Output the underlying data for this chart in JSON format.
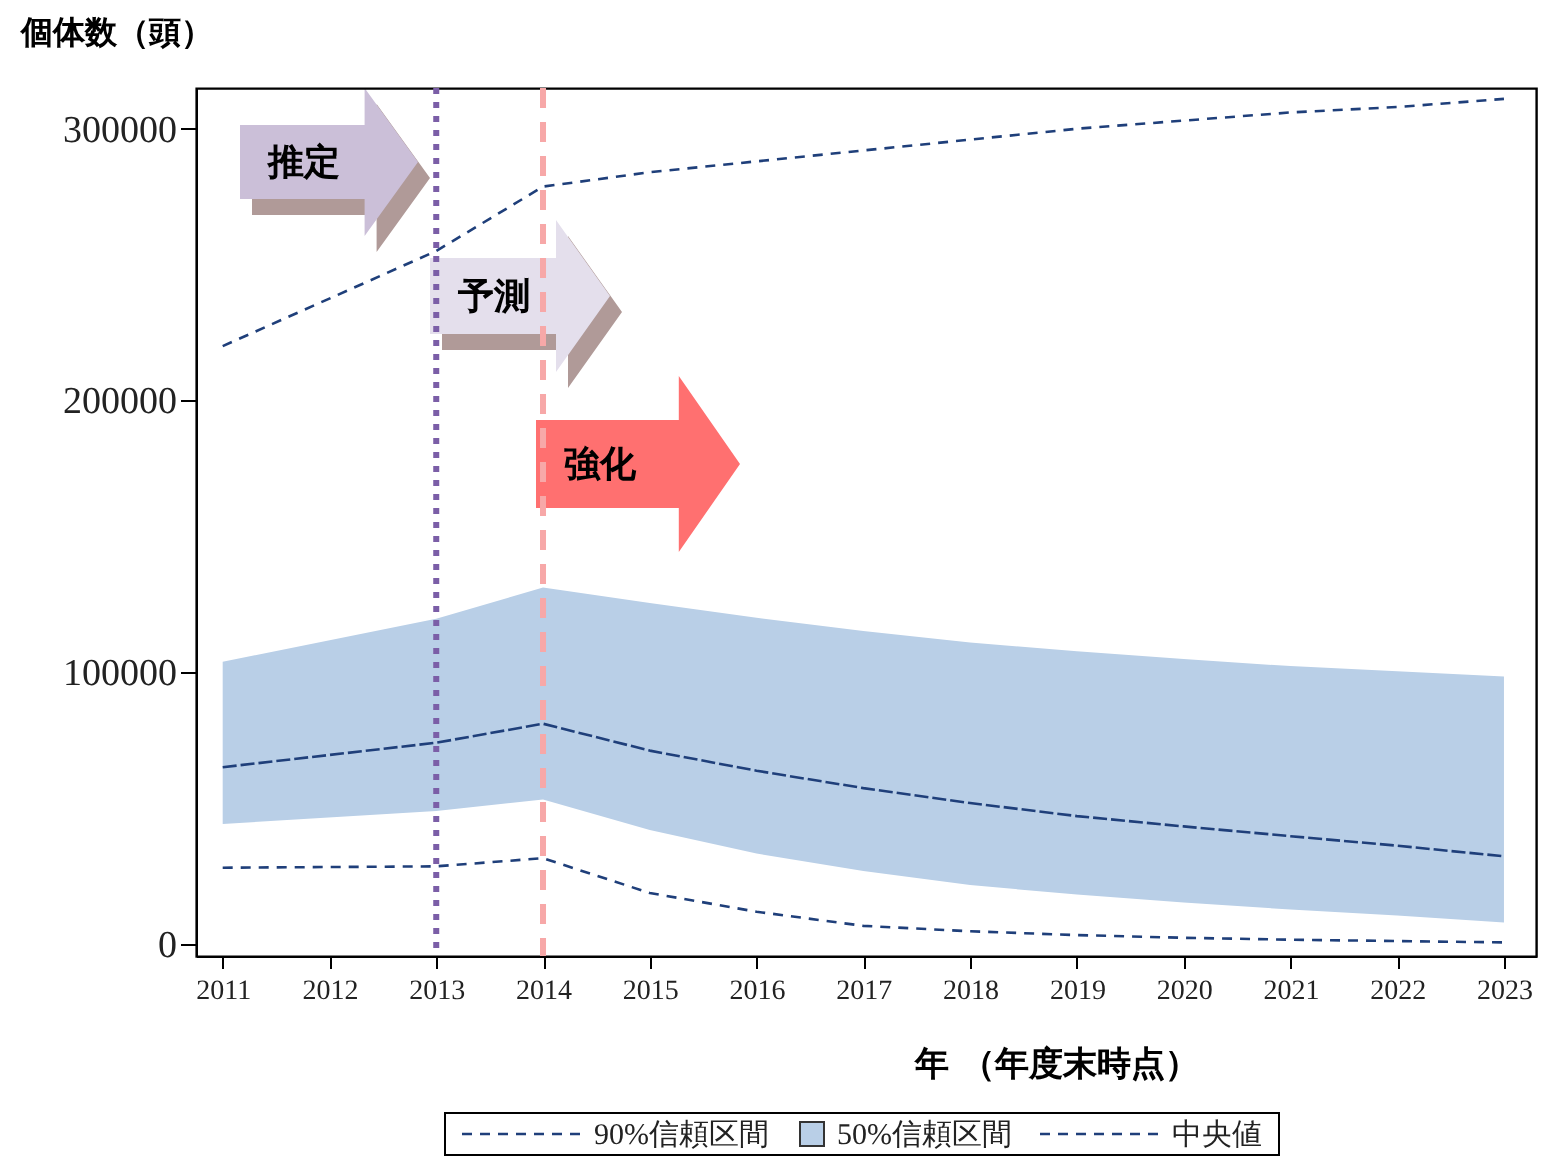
{
  "chart_data": {
    "type": "line",
    "ylabel": "個体数（頭）",
    "xlabel": "年 （年度末時点）",
    "x": [
      2011,
      2013,
      2014,
      2015,
      2016,
      2017,
      2018,
      2019,
      2020,
      2021,
      2022,
      2023
    ],
    "xlim": [
      2010.75,
      2023.3
    ],
    "xticks": [
      2011,
      2012,
      2013,
      2014,
      2015,
      2016,
      2017,
      2018,
      2019,
      2020,
      2021,
      2022,
      2023
    ],
    "ylim": [
      -4500,
      315000
    ],
    "yticks": [
      0,
      100000,
      200000,
      300000
    ],
    "series": [
      {
        "name": "90%信頼区間",
        "type": "line",
        "color": "#1f3f7a",
        "line_style": "dashed",
        "values": [
          28000,
          28500,
          31500,
          18700,
          11800,
          6600,
          4600,
          3200,
          2200,
          1500,
          1000,
          500
        ]
      },
      {
        "type": "line",
        "color": "#1f3f7a",
        "line_style": "dashed",
        "values": [
          220000,
          255000,
          278700,
          284000,
          288000,
          292000,
          296000,
          300000,
          303000,
          306000,
          308000,
          311000
        ]
      },
      {
        "name": "中央値",
        "color": "#1f3f7a",
        "line_style": "dashed",
        "values": [
          65000,
          74000,
          81000,
          71100,
          63700,
          57300,
          51800,
          47000,
          43200,
          39600,
          36100,
          32200
        ],
        "lower": [
          44100,
          48900,
          53100,
          41900,
          33200,
          26800,
          21600,
          18100,
          15200,
          12600,
          10400,
          7800
        ],
        "upper": [
          103800,
          119600,
          131100,
          125400,
          120000,
          115100,
          110900,
          107700,
          104800,
          102200,
          100300,
          98400
        ]
      }
    ],
    "ref_lines": [
      {
        "axis": "x",
        "value": 2013,
        "color": "#7b5ea7",
        "line_style": "dotted"
      },
      {
        "axis": "x",
        "value": 2014,
        "color": "#f7a8a8",
        "line_style": "dashed"
      }
    ],
    "annotations": [
      "推定",
      "予測",
      "強化",
      "50%信頼区間"
    ],
    "grid": false,
    "legend": "bottom"
  }
}
